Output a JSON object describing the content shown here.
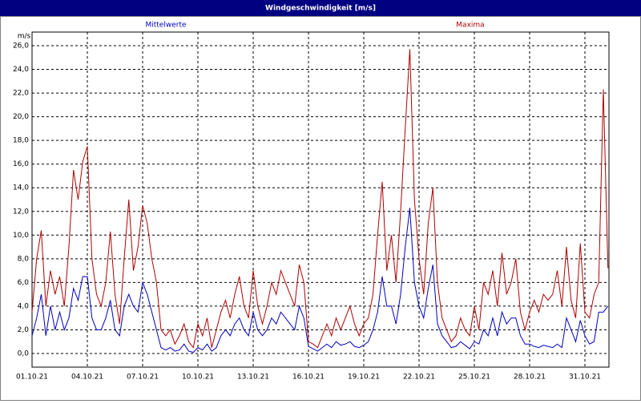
{
  "chart_data": {
    "type": "line",
    "title": "Windgeschwindigkeit [m/s]",
    "y_label": "m/s",
    "categories": [
      "01.10.21",
      null,
      null,
      null,
      null,
      null,
      null,
      null,
      null,
      null,
      null,
      null,
      "04.10.21",
      null,
      null,
      null,
      null,
      null,
      null,
      null,
      null,
      null,
      null,
      null,
      "07.10.21",
      null,
      null,
      null,
      null,
      null,
      null,
      null,
      null,
      null,
      null,
      null,
      "10.10.21",
      null,
      null,
      null,
      null,
      null,
      null,
      null,
      null,
      null,
      null,
      null,
      "13.10.21",
      null,
      null,
      null,
      null,
      null,
      null,
      null,
      null,
      null,
      null,
      null,
      "16.10.21",
      null,
      null,
      null,
      null,
      null,
      null,
      null,
      null,
      null,
      null,
      null,
      "19.10.21",
      null,
      null,
      null,
      null,
      null,
      null,
      null,
      null,
      null,
      null,
      null,
      "22.10.21",
      null,
      null,
      null,
      null,
      null,
      null,
      null,
      null,
      null,
      null,
      null,
      "25.10.21",
      null,
      null,
      null,
      null,
      null,
      null,
      null,
      null,
      null,
      null,
      null,
      "28.10.21",
      null,
      null,
      null,
      null,
      null,
      null,
      null,
      null,
      null,
      null,
      null,
      "31.10.21",
      null,
      null,
      null,
      null,
      null
    ],
    "series": [
      {
        "name": "Mittelwerte",
        "color": "#0000c0",
        "values": [
          1.5,
          3,
          5,
          1.5,
          4,
          2,
          3.5,
          2,
          3,
          5.5,
          4.5,
          6.5,
          6.5,
          3,
          2,
          2,
          3,
          4.5,
          2,
          1.5,
          4,
          5,
          4,
          3.5,
          6,
          5,
          3.5,
          2,
          0.5,
          0.3,
          0.5,
          0.2,
          0.3,
          0.8,
          0.2,
          0.1,
          0.5,
          0.3,
          0.8,
          0.2,
          0.5,
          1.5,
          2,
          1.5,
          2.5,
          3,
          2,
          1.5,
          3.5,
          2,
          1.5,
          2,
          3,
          2.5,
          3.5,
          3,
          2.5,
          2,
          4,
          3,
          0.6,
          0.4,
          0.2,
          0.5,
          0.8,
          0.5,
          1,
          0.7,
          0.8,
          1,
          0.6,
          0.5,
          0.7,
          1,
          2,
          3.5,
          6.5,
          4,
          4,
          2.5,
          5,
          9,
          12.3,
          6,
          4,
          3,
          5.5,
          7.5,
          2.5,
          1.5,
          1,
          0.5,
          0.6,
          1,
          0.7,
          0.4,
          1,
          0.8,
          2,
          1.5,
          3,
          1.5,
          3.5,
          2.5,
          3,
          3,
          1.5,
          0.8,
          0.8,
          0.6,
          0.5,
          0.7,
          0.6,
          0.5,
          0.8,
          0.5,
          3,
          2,
          1,
          2.8,
          1.5,
          0.8,
          1,
          3.5,
          3.5,
          4
        ]
      },
      {
        "name": "Maxima",
        "color": "#b00000",
        "values": [
          3.5,
          8,
          10.4,
          4,
          7,
          5,
          6.5,
          4,
          9,
          15.5,
          13,
          16.2,
          17.5,
          8,
          5,
          4,
          6,
          10.3,
          5,
          2.5,
          8,
          13,
          7,
          9,
          12.5,
          11,
          8,
          6,
          2,
          1.5,
          2,
          0.8,
          1.5,
          2.5,
          1,
          0.5,
          2.5,
          1.5,
          3,
          0.5,
          2,
          3.5,
          4.5,
          3,
          5,
          6.5,
          4,
          3,
          7,
          4,
          2.5,
          4,
          6,
          5,
          7,
          6,
          5,
          4,
          7.5,
          6,
          1,
          0.8,
          0.5,
          1.5,
          2.5,
          1.5,
          3,
          2,
          3,
          4,
          2.5,
          1.5,
          2.5,
          3,
          5,
          10,
          14.5,
          7,
          10,
          6,
          12,
          19,
          25.7,
          13,
          8,
          5,
          11,
          14,
          6,
          3,
          2,
          1,
          1.5,
          3,
          2,
          1.5,
          4,
          2,
          6,
          5,
          7,
          4,
          8.5,
          5,
          6,
          8,
          3.5,
          2,
          3.5,
          4.5,
          3.5,
          5,
          4.5,
          5,
          7,
          4,
          9,
          4.5,
          3,
          9.3,
          3.5,
          3,
          5,
          6,
          22.3,
          7.2
        ]
      }
    ],
    "ylim": [
      -1.15,
      27.15
    ],
    "yticks": [
      {
        "value": 0,
        "label": "0,0"
      },
      {
        "value": 2,
        "label": "2,0"
      },
      {
        "value": 4,
        "label": "4,0"
      },
      {
        "value": 6,
        "label": "6,0"
      },
      {
        "value": 8,
        "label": "8,0"
      },
      {
        "value": 10,
        "label": "10,0"
      },
      {
        "value": 12,
        "label": "12,0"
      },
      {
        "value": 14,
        "label": "14,0"
      },
      {
        "value": 16,
        "label": "16,0"
      },
      {
        "value": 18,
        "label": "18,0"
      },
      {
        "value": 20,
        "label": "20,0"
      },
      {
        "value": 22,
        "label": "22,0"
      },
      {
        "value": 24,
        "label": "24,0"
      },
      {
        "value": 26,
        "label": "26,0"
      }
    ],
    "grid": true
  }
}
